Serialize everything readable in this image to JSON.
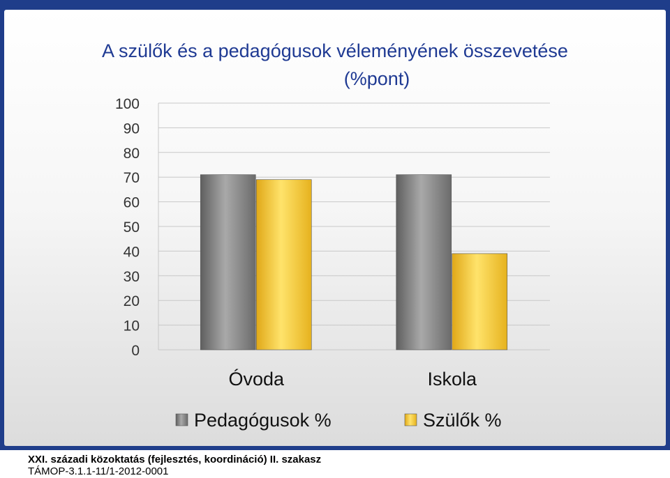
{
  "slide": {
    "title_line1": "A szülők és a pedagógusok véleményének összevetése",
    "title_line2": "(%pont)"
  },
  "footer": {
    "line1": "XXI. századi közoktatás (fejlesztés, koordináció) II. szakasz",
    "line2": "TÁMOP-3.1.1-11/1-2012-0001"
  },
  "colors": {
    "frame": "#1f3d8a",
    "title": "#1f3a93",
    "pedagogusok": "#8a8a8a",
    "szulok": "#f2c12e"
  },
  "chart_data": {
    "type": "bar",
    "title": "A szülők és a pedagógusok véleményének összevetése (%pont)",
    "categories": [
      "Óvoda",
      "Iskola"
    ],
    "series": [
      {
        "name": "Pedagógusok %",
        "values": [
          71,
          71
        ],
        "color": "#8a8a8a"
      },
      {
        "name": "Szülők %",
        "values": [
          69,
          39
        ],
        "color": "#f2c12e"
      }
    ],
    "ylim": [
      0,
      100
    ],
    "yticks": [
      0,
      10,
      20,
      30,
      40,
      50,
      60,
      70,
      80,
      90,
      100
    ],
    "grid": true,
    "legend": "bottom"
  }
}
